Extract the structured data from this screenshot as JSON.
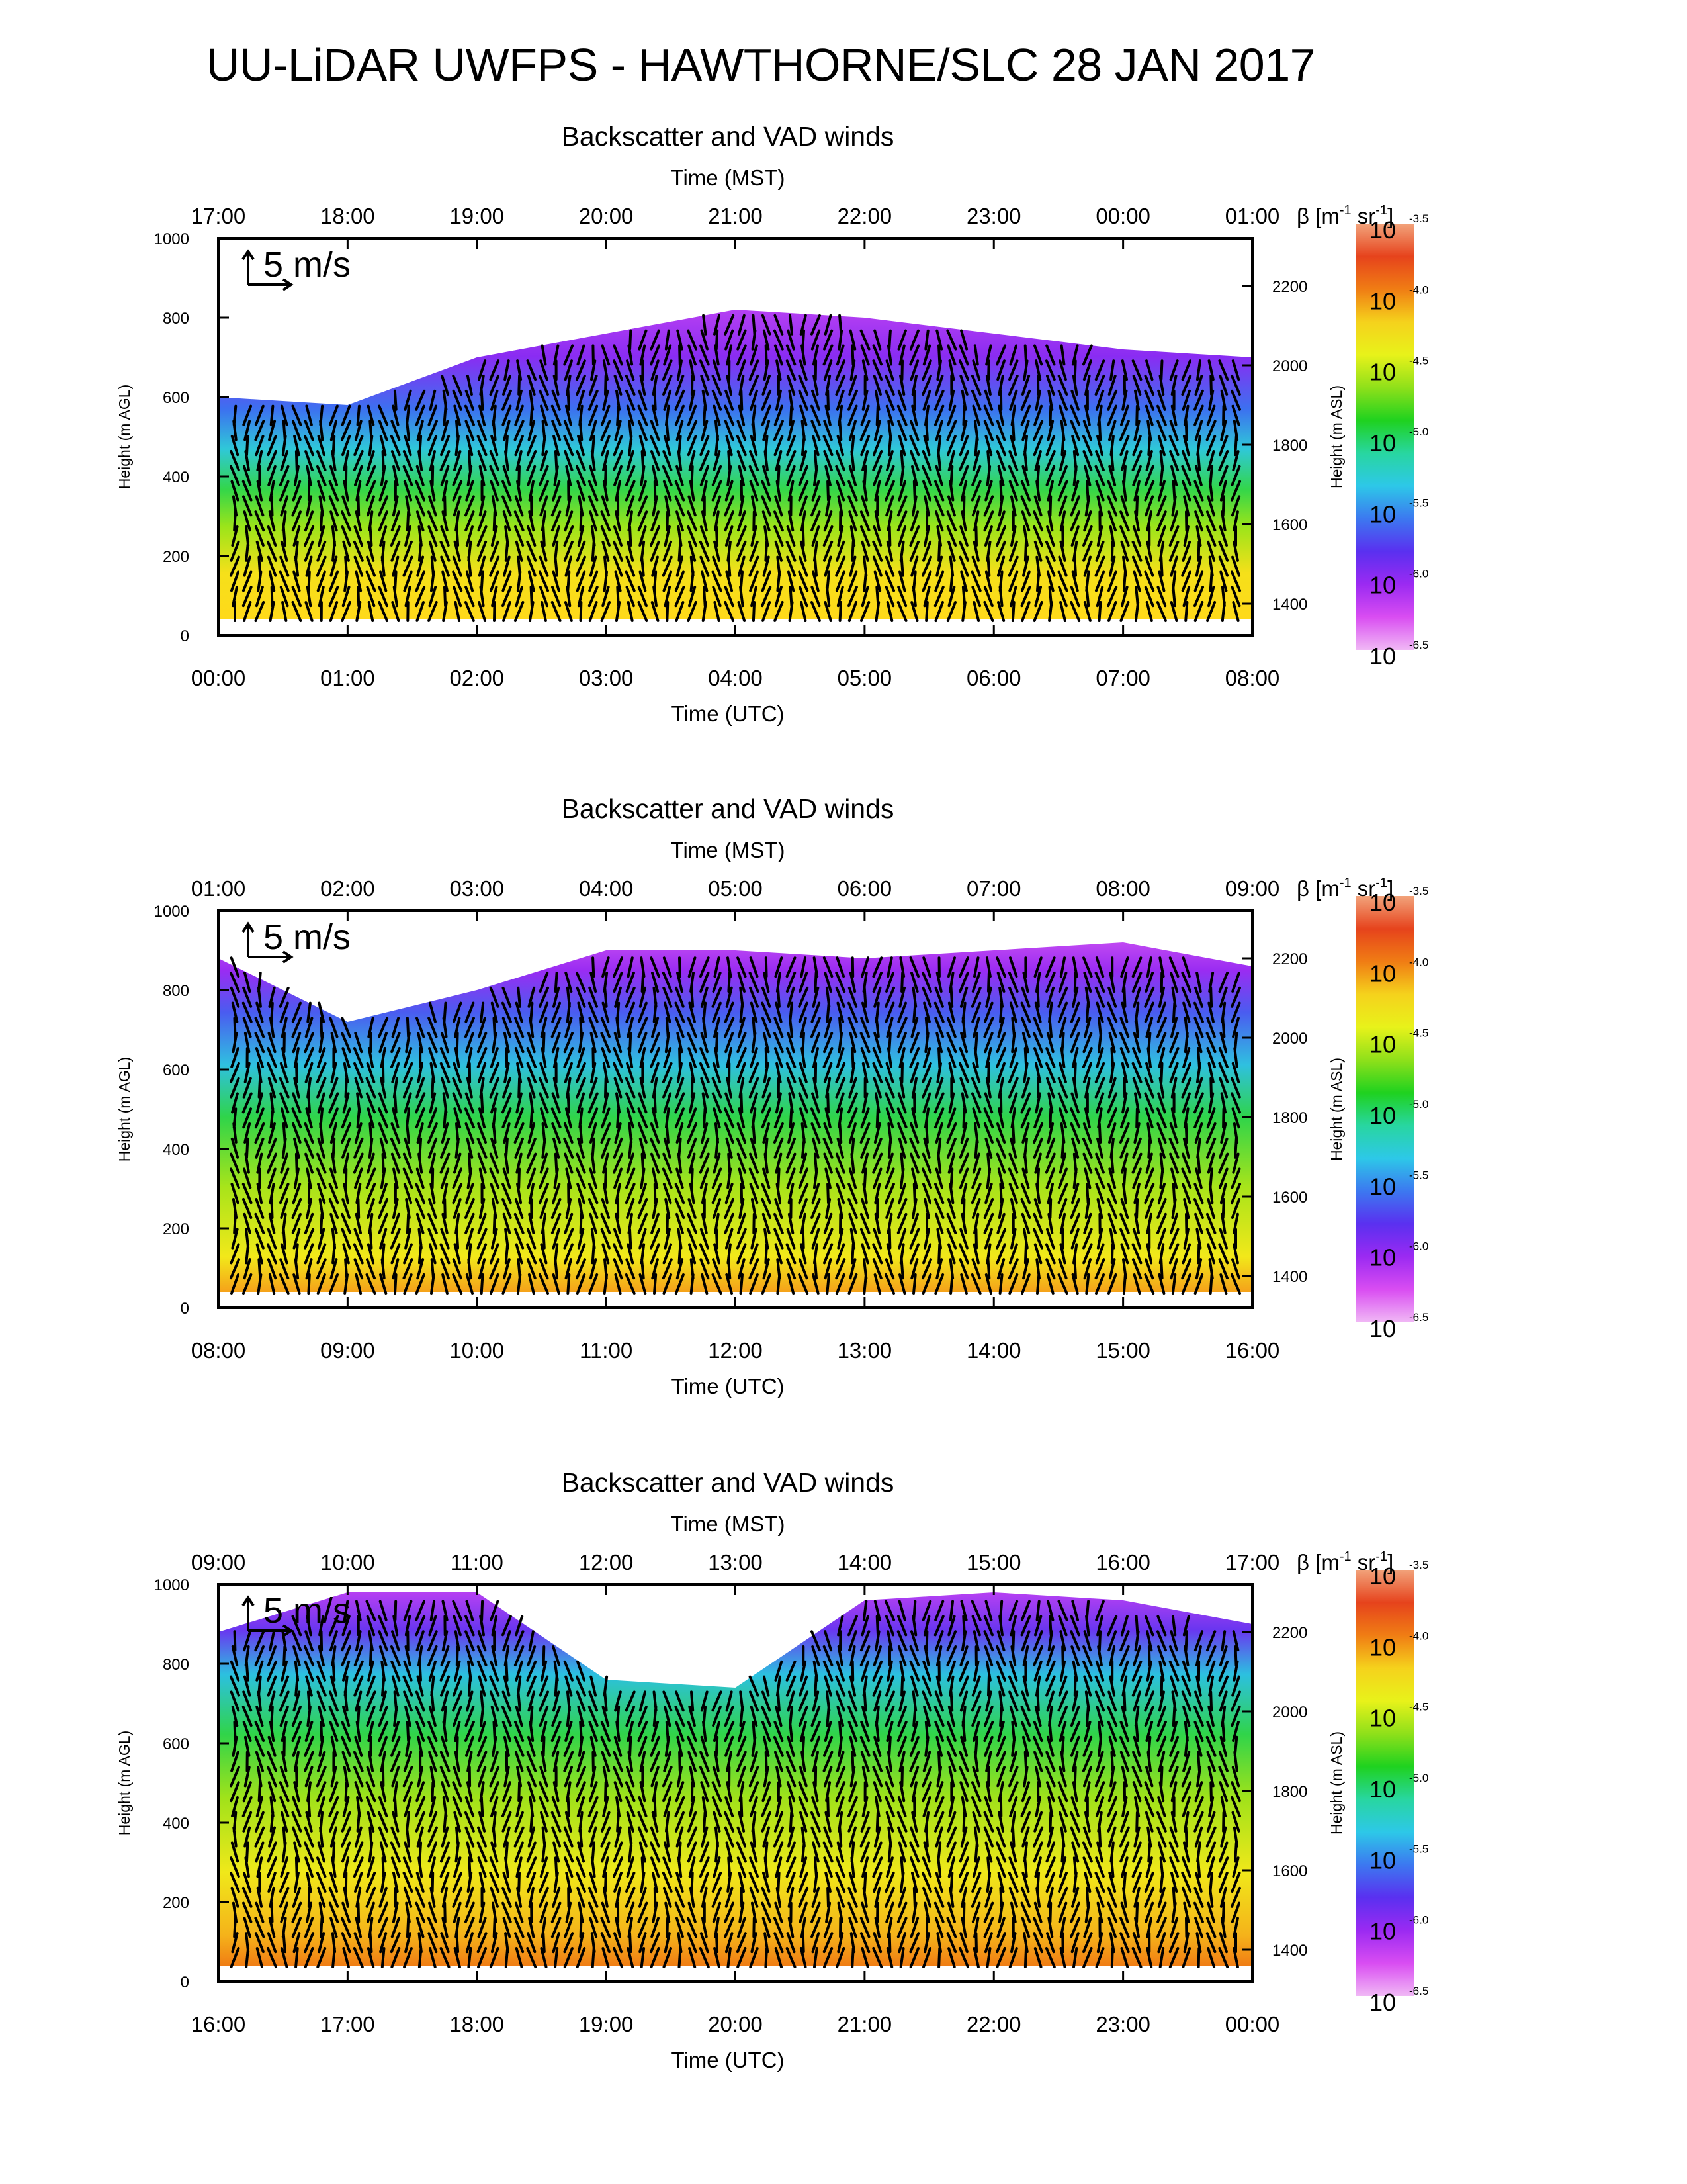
{
  "title": "UU-LiDAR UWFPS - HAWTHORNE/SLC 28 JAN 2017",
  "colorbar": {
    "label_prefix": "β [m",
    "label_sup1": "-1",
    "label_mid": " sr",
    "label_sup2": "-1",
    "label_suffix": "]",
    "base": "10",
    "exponents": [
      "-3.5",
      "-4.0",
      "-4.5",
      "-5.0",
      "-5.5",
      "-6.0",
      "-6.5"
    ],
    "colors_top_to_bottom": [
      "#f2a37b",
      "#e6431c",
      "#f07d14",
      "#f5d21c",
      "#e8f21a",
      "#8fe01a",
      "#1fd21f",
      "#28d6a0",
      "#2dc8e8",
      "#3c78f0",
      "#5a30f0",
      "#9b2af2",
      "#d94df2",
      "#f0b8f5"
    ]
  },
  "scale_label": "5 m/s",
  "chart_data": [
    {
      "type": "heatmap",
      "title": "Backscatter and VAD winds",
      "top_axis_title": "Time (MST)",
      "top_ticks": [
        "17:00",
        "18:00",
        "19:00",
        "20:00",
        "21:00",
        "22:00",
        "23:00",
        "00:00",
        "01:00"
      ],
      "xlabel": "Time (UTC)",
      "x_ticks": [
        "00:00",
        "01:00",
        "02:00",
        "03:00",
        "04:00",
        "05:00",
        "06:00",
        "07:00",
        "08:00"
      ],
      "ylabel": "Height (m AGL)",
      "y_ticks": [
        "0",
        "200",
        "400",
        "600",
        "800",
        "1000"
      ],
      "ylim": [
        0,
        1000
      ],
      "right_ylabel": "Height (m ASL)",
      "right_y_ticks": [
        "1400",
        "1600",
        "1800",
        "2000",
        "2200"
      ],
      "x_range_utc_hours": [
        0,
        8
      ],
      "signal_top_agl_m": [
        600,
        580,
        700,
        760,
        820,
        800,
        760,
        720,
        700
      ]
    },
    {
      "type": "heatmap",
      "title": "Backscatter and VAD winds",
      "top_axis_title": "Time (MST)",
      "top_ticks": [
        "01:00",
        "02:00",
        "03:00",
        "04:00",
        "05:00",
        "06:00",
        "07:00",
        "08:00",
        "09:00"
      ],
      "xlabel": "Time (UTC)",
      "x_ticks": [
        "08:00",
        "09:00",
        "10:00",
        "11:00",
        "12:00",
        "13:00",
        "14:00",
        "15:00",
        "16:00"
      ],
      "ylabel": "Height (m AGL)",
      "y_ticks": [
        "0",
        "200",
        "400",
        "600",
        "800",
        "1000"
      ],
      "ylim": [
        0,
        1000
      ],
      "right_ylabel": "Height (m ASL)",
      "right_y_ticks": [
        "1400",
        "1600",
        "1800",
        "2000",
        "2200"
      ],
      "x_range_utc_hours": [
        8,
        16
      ],
      "signal_top_agl_m": [
        880,
        720,
        800,
        900,
        900,
        880,
        900,
        920,
        860
      ]
    },
    {
      "type": "heatmap",
      "title": "Backscatter and VAD winds",
      "top_axis_title": "Time (MST)",
      "top_ticks": [
        "09:00",
        "10:00",
        "11:00",
        "12:00",
        "13:00",
        "14:00",
        "15:00",
        "16:00",
        "17:00"
      ],
      "xlabel": "Time (UTC)",
      "x_ticks": [
        "16:00",
        "17:00",
        "18:00",
        "19:00",
        "20:00",
        "21:00",
        "22:00",
        "23:00",
        "00:00"
      ],
      "ylabel": "Height (m AGL)",
      "y_ticks": [
        "0",
        "200",
        "400",
        "600",
        "800",
        "1000"
      ],
      "ylim": [
        0,
        1000
      ],
      "right_ylabel": "Height (m ASL)",
      "right_y_ticks": [
        "1400",
        "1600",
        "1800",
        "2000",
        "2200"
      ],
      "x_range_utc_hours": [
        16,
        24
      ],
      "signal_top_agl_m": [
        880,
        980,
        980,
        760,
        740,
        960,
        980,
        960,
        900
      ]
    }
  ]
}
